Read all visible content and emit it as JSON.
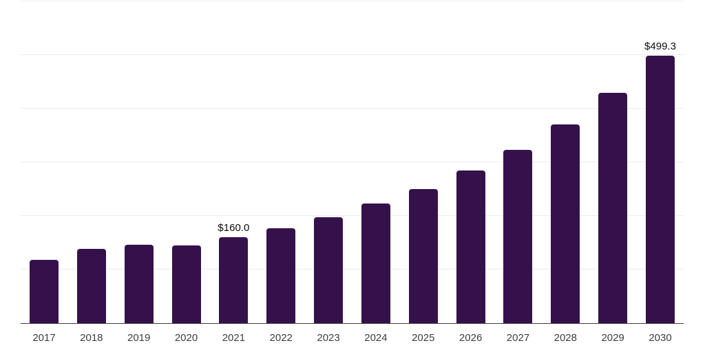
{
  "chart_data": {
    "type": "bar",
    "title": "",
    "xlabel": "",
    "ylabel": "",
    "categories": [
      "2017",
      "2018",
      "2019",
      "2020",
      "2021",
      "2022",
      "2023",
      "2024",
      "2025",
      "2026",
      "2027",
      "2028",
      "2029",
      "2030"
    ],
    "values": [
      118,
      139,
      146.5,
      145.5,
      160.0,
      177.5,
      198,
      223,
      250,
      284,
      323.5,
      371,
      430,
      499.3
    ],
    "data_labels": [
      {
        "category": "2021",
        "text": "$160.0"
      },
      {
        "category": "2030",
        "text": "$499.3"
      }
    ],
    "ylim": [
      0,
      600
    ],
    "gridline_step": 100,
    "grid": "horizontal-only",
    "legend": "none",
    "colors": {
      "bar": "#35114B",
      "axis_line": "#3c3c3c",
      "gridline": "#ececec",
      "tick_label": "#3d3d3d",
      "data_label": "#0a0a0a",
      "background": "#ffffff"
    }
  }
}
